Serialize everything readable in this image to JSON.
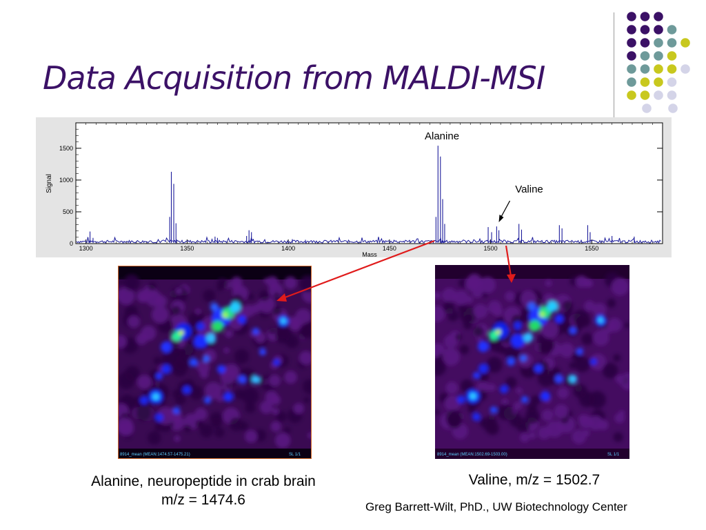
{
  "slide": {
    "title": "Data Acquisition from MALDI-MSI",
    "caption_left_line1": "Alanine, neuropeptide in crab brain",
    "caption_left_line2": "m/z = 1474.6",
    "caption_right": "Valine, m/z = 1502.7",
    "credit": "Greg Barrett-Wilt, PhD., UW Biotechnology Center"
  },
  "colors": {
    "title": "#3b1166",
    "dot_purple": "#3b1166",
    "dot_teal": "#6e9a9a",
    "dot_yellow": "#c8c81e",
    "dot_lavender": "#d4d4e8",
    "spectrum_line": "#1a1a9a",
    "arrow_red": "#e01b1b"
  },
  "chart_data": {
    "type": "line",
    "xlabel": "Mass",
    "ylabel": "Signal",
    "xlim": [
      1295,
      1585
    ],
    "ylim": [
      0,
      1900
    ],
    "xticks": [
      1300,
      1350,
      1400,
      1450,
      1500,
      1550
    ],
    "yticks": [
      0,
      500,
      1000,
      1500
    ],
    "grid": false,
    "annotations": [
      {
        "text": "Alanine",
        "x": 1474.6
      },
      {
        "text": "Valine",
        "x": 1502.7
      }
    ],
    "peaks": [
      {
        "x": 1302.0,
        "y": 190
      },
      {
        "x": 1303.5,
        "y": 90
      },
      {
        "x": 1342.2,
        "y": 1130
      },
      {
        "x": 1343.4,
        "y": 940
      },
      {
        "x": 1344.5,
        "y": 320
      },
      {
        "x": 1341.4,
        "y": 420
      },
      {
        "x": 1363.8,
        "y": 110
      },
      {
        "x": 1365.0,
        "y": 90
      },
      {
        "x": 1380.6,
        "y": 210
      },
      {
        "x": 1381.8,
        "y": 180
      },
      {
        "x": 1379.4,
        "y": 120
      },
      {
        "x": 1402.0,
        "y": 70
      },
      {
        "x": 1408.5,
        "y": 60
      },
      {
        "x": 1474.0,
        "y": 1540
      },
      {
        "x": 1475.2,
        "y": 1370
      },
      {
        "x": 1476.3,
        "y": 700
      },
      {
        "x": 1477.3,
        "y": 310
      },
      {
        "x": 1473.0,
        "y": 420
      },
      {
        "x": 1498.8,
        "y": 260
      },
      {
        "x": 1500.5,
        "y": 180
      },
      {
        "x": 1503.0,
        "y": 270
      },
      {
        "x": 1504.1,
        "y": 210
      },
      {
        "x": 1514.0,
        "y": 310
      },
      {
        "x": 1515.3,
        "y": 220
      },
      {
        "x": 1534.0,
        "y": 290
      },
      {
        "x": 1535.3,
        "y": 240
      },
      {
        "x": 1548.0,
        "y": 290
      },
      {
        "x": 1549.2,
        "y": 180
      },
      {
        "x": 1560.0,
        "y": 120
      },
      {
        "x": 1571.0,
        "y": 110
      }
    ]
  },
  "images": {
    "left_footer": "8914_mean (MEAN:1474.57-1475.21)",
    "left_footer_right": "SL 1/1",
    "right_footer": "8914_mean (MEAN:1502.69-1503.00)",
    "right_footer_right": "SL 1/1"
  }
}
